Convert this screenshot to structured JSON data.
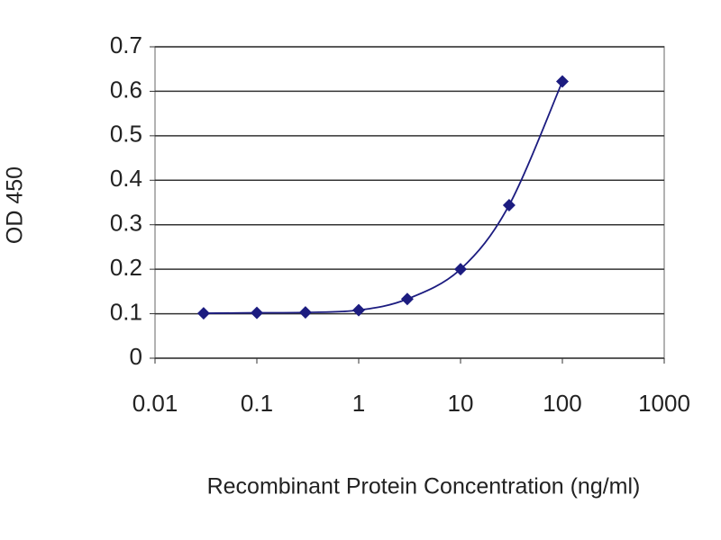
{
  "chart_data": {
    "type": "line",
    "x_label": "Recombinant Protein Concentration (ng/ml)",
    "y_label": "OD 450",
    "x": [
      0.03,
      0.1,
      0.3,
      1,
      3,
      10,
      30,
      100
    ],
    "series": [
      {
        "color": "#1c1c80",
        "values": [
          0.101,
          0.102,
          0.103,
          0.108,
          0.133,
          0.2,
          0.344,
          0.622
        ]
      }
    ],
    "xscale": "log",
    "xlim": [
      0.01,
      1000
    ],
    "xticks": [
      0.01,
      0.1,
      1,
      10,
      100,
      1000
    ],
    "ylim": [
      0,
      0.7
    ],
    "yticks": [
      0,
      0.1,
      0.2,
      0.3,
      0.4,
      0.5,
      0.6,
      0.7
    ],
    "grid": true
  }
}
